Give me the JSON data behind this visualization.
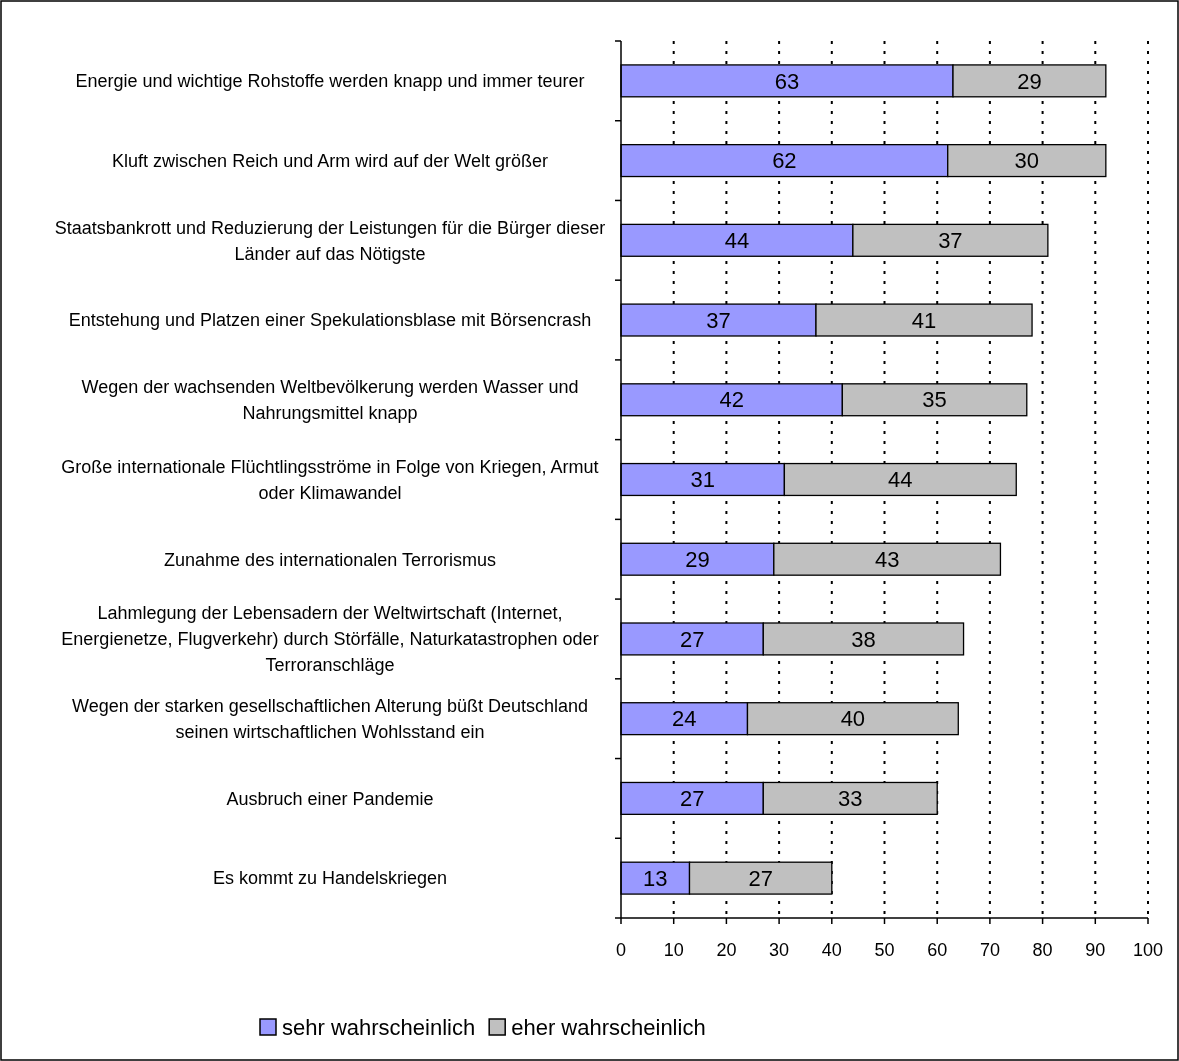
{
  "chart_data": {
    "type": "bar",
    "orientation": "horizontal",
    "stacked": true,
    "data_labels": true,
    "grid": "x",
    "legend": "bottom",
    "categories": [
      "Energie und wichtige Rohstoffe werden knapp und immer teurer",
      "Kluft zwischen Reich und Arm wird auf der Welt größer",
      "Staatsbankrott und Reduzierung der Leistungen für die Bürger dieser Länder auf das Nötigste",
      "Entstehung und Platzen einer Spekulationsblase mit Börsencrash",
      "Wegen der wachsenden Weltbevölkerung werden Wasser und Nahrungsmittel knapp",
      "Große internationale Flüchtlingsströme in Folge von Kriegen, Armut oder Klimawandel",
      "Zunahme des internationalen Terrorismus",
      "Lahmlegung der Lebensadern der Weltwirtschaft (Internet, Energienetze, Flugverkehr) durch Störfälle, Naturkatastrophen oder Terroranschläge",
      "Wegen der starken gesellschaftlichen Alterung büßt Deutschland seinen wirtschaftlichen Wohlsstand ein",
      "Ausbruch einer Pandemie",
      "Es kommt zu Handelskriegen"
    ],
    "series": [
      {
        "name": "sehr wahrscheinlich",
        "color": "#9999ff",
        "values": [
          63,
          62,
          44,
          37,
          42,
          31,
          29,
          27,
          24,
          27,
          13
        ]
      },
      {
        "name": "eher wahrscheinlich",
        "color": "#c0c0c0",
        "values": [
          29,
          30,
          37,
          41,
          35,
          44,
          43,
          38,
          40,
          33,
          27
        ]
      }
    ],
    "xlim": [
      0,
      100
    ],
    "xticks": [
      0,
      10,
      20,
      30,
      40,
      50,
      60,
      70,
      80,
      90,
      100
    ]
  }
}
